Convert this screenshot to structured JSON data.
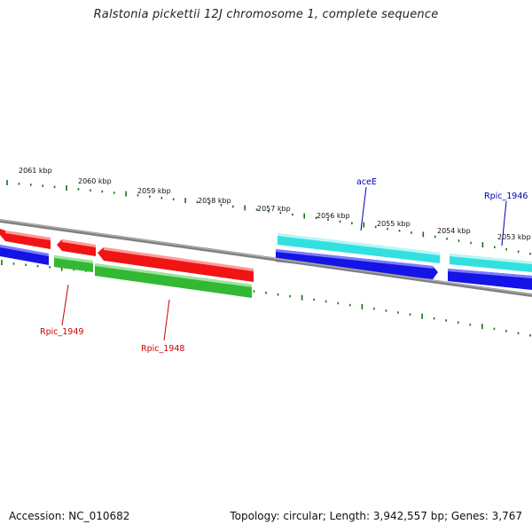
{
  "title": "Ralstonia pickettii 12J chromosome 1, complete sequence",
  "footer": {
    "accession": "Accession: NC_010682",
    "summary": "Topology: circular; Length: 3,942,557 bp; Genes: 3,767"
  },
  "colors": {
    "backbone": "#808080",
    "tick": "#1a6e1a",
    "forward_gene": "#33e0e0",
    "forward_cds": "#1414e6",
    "reverse_gene": "#f01414",
    "reverse_cds": "#33b833",
    "forward_label": "#0000b0",
    "reverse_label": "#cc0000"
  },
  "scale_labels": [
    "2061 kbp",
    "2060 kbp",
    "2059 kbp",
    "2058 kbp",
    "2057 kbp",
    "2056 kbp",
    "2055 kbp",
    "2054 kbp",
    "2053 kbp"
  ],
  "gene_labels": {
    "forward": [
      "aceE",
      "Rpic_1946"
    ],
    "reverse": [
      "Rpic_1949",
      "Rpic_1948"
    ]
  }
}
